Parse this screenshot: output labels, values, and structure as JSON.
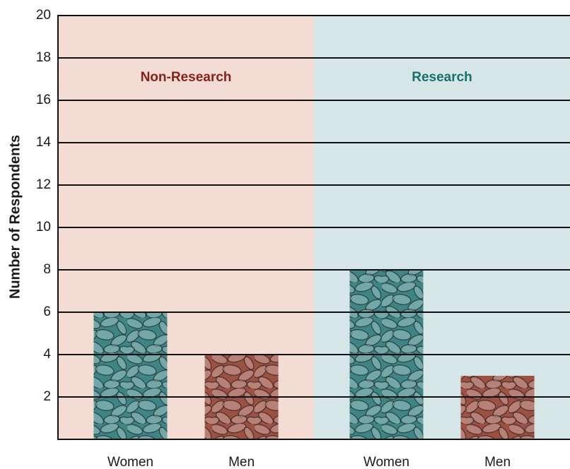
{
  "chart_data": {
    "type": "bar",
    "y_label": "Number of Respondents",
    "categories": [
      "Women",
      "Men",
      "Women",
      "Men"
    ],
    "values": [
      6,
      4,
      8,
      3
    ],
    "colors": [
      "#3f8585",
      "#9c5142",
      "#3f8585",
      "#9c5142"
    ],
    "groups": [
      {
        "label": "Non-Research",
        "color": "#8b1f1a",
        "background": "#f2dcd3"
      },
      {
        "label": "Research",
        "color": "#17706c",
        "background": "#d6e6e6"
      }
    ],
    "ylim": [
      0,
      20
    ],
    "yticks": [
      2,
      4,
      6,
      8,
      10,
      12,
      14,
      16,
      18,
      20
    ],
    "grid": true
  }
}
